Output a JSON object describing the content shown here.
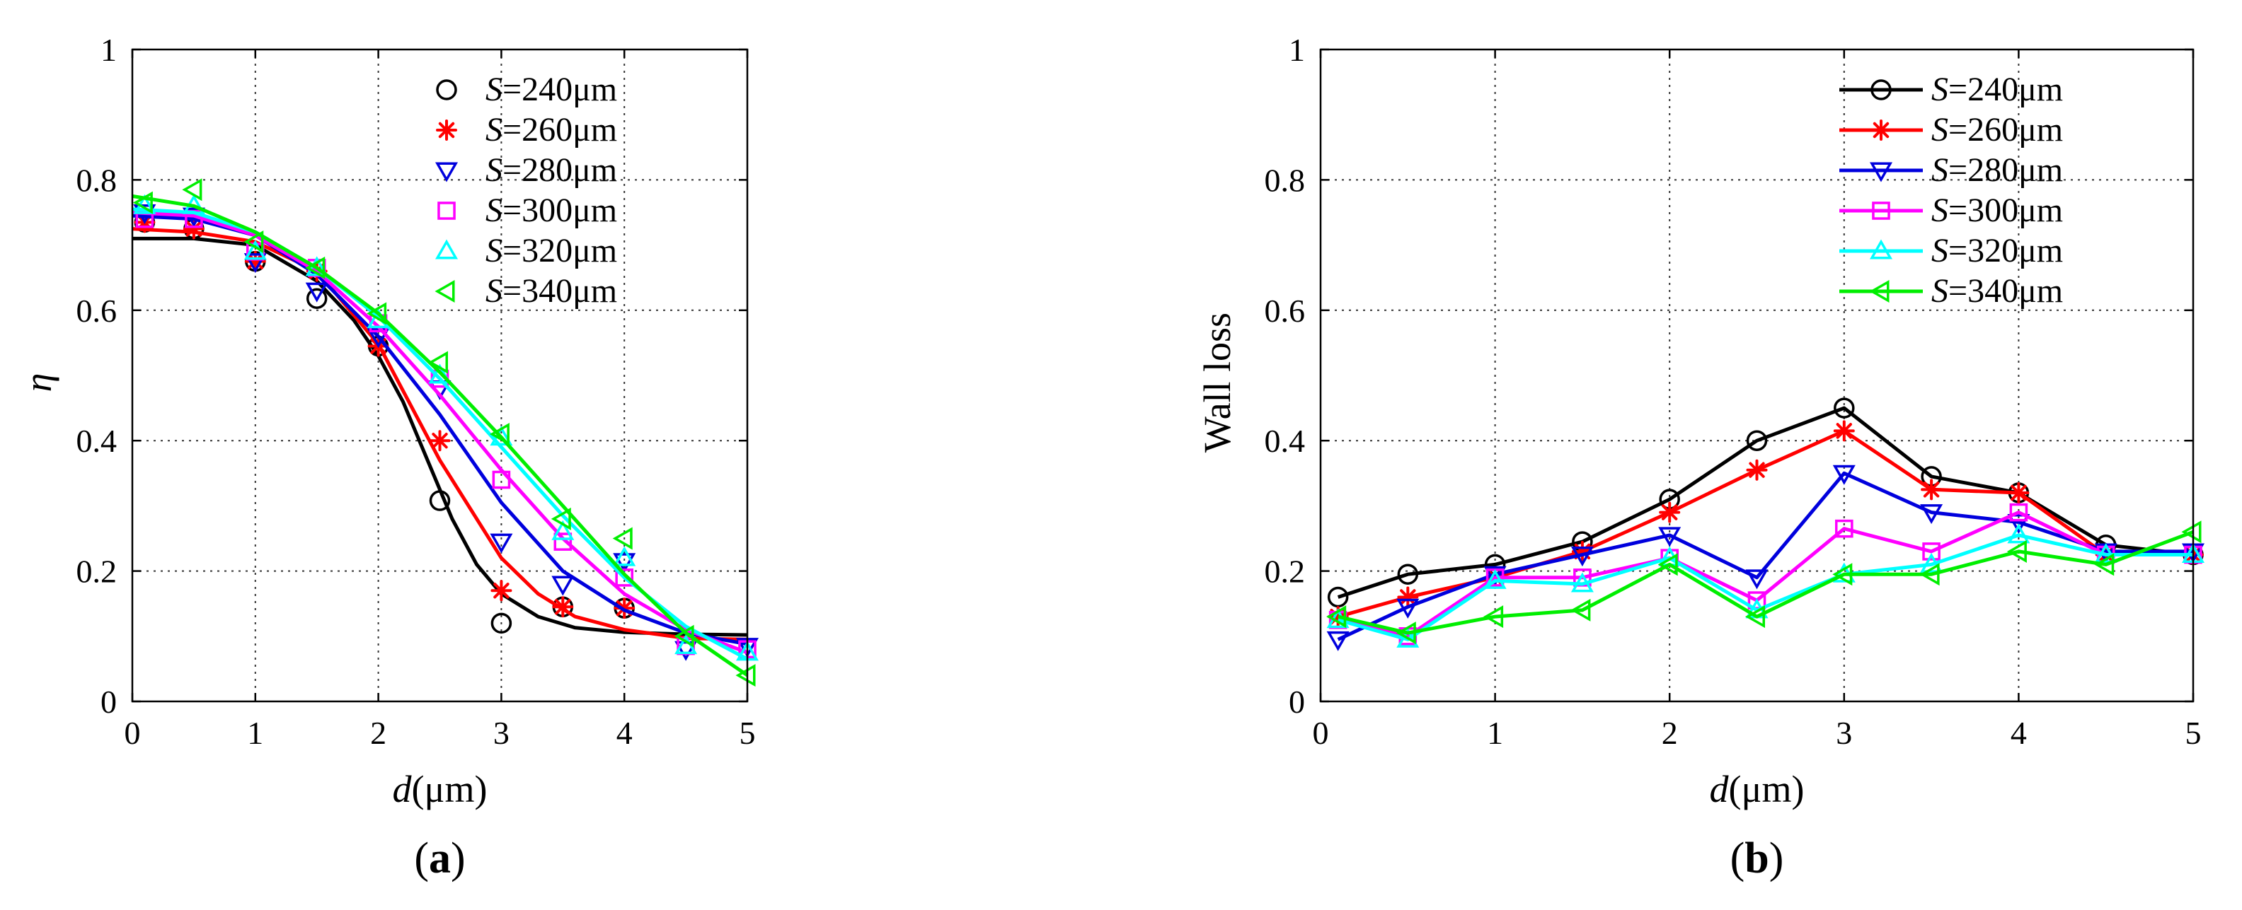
{
  "colors": {
    "S240": "#000000",
    "S260": "#ff0000",
    "S280": "#0000dd",
    "S300": "#ff00ff",
    "S320": "#00ffff",
    "S340": "#00ee00"
  },
  "chart_data": [
    {
      "id": "a",
      "type": "scatter",
      "panel_label": {
        "open": "(",
        "letter": "a",
        "close": ")"
      },
      "xlabel": {
        "var": "d",
        "unit": "(μm)"
      },
      "ylabel": "η",
      "xlim": [
        0,
        5
      ],
      "ylim": [
        0,
        1
      ],
      "xticks": [
        "0",
        "1",
        "2",
        "3",
        "4",
        "5"
      ],
      "yticks": [
        "0",
        "0.2",
        "0.4",
        "0.6",
        "0.8",
        "1"
      ],
      "legend_position": "top-right",
      "grid": true,
      "series": [
        {
          "key": "S240",
          "label_var": "S",
          "label_rest": "=240μm",
          "marker": "circle",
          "x": [
            0.1,
            0.5,
            1,
            1.5,
            2,
            2.5,
            3,
            3.5,
            4
          ],
          "y": [
            0.735,
            0.725,
            0.675,
            0.618,
            0.545,
            0.308,
            0.12,
            0.145,
            0.143
          ],
          "fit": [
            [
              0,
              0.71
            ],
            [
              0.5,
              0.71
            ],
            [
              1,
              0.7
            ],
            [
              1.5,
              0.645
            ],
            [
              1.8,
              0.585
            ],
            [
              2,
              0.53
            ],
            [
              2.2,
              0.46
            ],
            [
              2.4,
              0.37
            ],
            [
              2.6,
              0.28
            ],
            [
              2.8,
              0.21
            ],
            [
              3,
              0.165
            ],
            [
              3.3,
              0.13
            ],
            [
              3.6,
              0.113
            ],
            [
              4,
              0.106
            ],
            [
              4.5,
              0.103
            ],
            [
              5,
              0.102
            ]
          ]
        },
        {
          "key": "S260",
          "label_var": "S",
          "label_rest": "=260μm",
          "marker": "asterisk",
          "x": [
            0.1,
            0.5,
            1,
            1.5,
            2,
            2.5,
            3,
            3.5,
            4
          ],
          "y": [
            0.735,
            0.725,
            0.675,
            0.66,
            0.545,
            0.4,
            0.17,
            0.145,
            0.143
          ],
          "fit": [
            [
              0,
              0.725
            ],
            [
              0.5,
              0.72
            ],
            [
              1,
              0.705
            ],
            [
              1.5,
              0.66
            ],
            [
              2,
              0.548
            ],
            [
              2.5,
              0.37
            ],
            [
              3,
              0.22
            ],
            [
              3.3,
              0.165
            ],
            [
              3.6,
              0.13
            ],
            [
              4,
              0.11
            ],
            [
              4.5,
              0.097
            ],
            [
              5,
              0.095
            ]
          ]
        },
        {
          "key": "S280",
          "label_var": "S",
          "label_rest": "=280μm",
          "marker": "triangle-down",
          "x": [
            0.1,
            0.5,
            1,
            1.5,
            2,
            2.5,
            3,
            3.5,
            4,
            4.5,
            5
          ],
          "y": [
            0.75,
            0.745,
            0.675,
            0.63,
            0.56,
            0.48,
            0.245,
            0.18,
            0.215,
            0.08,
            0.085
          ],
          "fit": [
            [
              0,
              0.745
            ],
            [
              0.5,
              0.74
            ],
            [
              1,
              0.715
            ],
            [
              1.5,
              0.655
            ],
            [
              2,
              0.56
            ],
            [
              2.5,
              0.44
            ],
            [
              3,
              0.305
            ],
            [
              3.5,
              0.2
            ],
            [
              4,
              0.14
            ],
            [
              4.5,
              0.105
            ],
            [
              5,
              0.088
            ]
          ]
        },
        {
          "key": "S300",
          "label_var": "S",
          "label_rest": "=300μm",
          "marker": "square",
          "x": [
            0.1,
            0.5,
            1,
            1.5,
            2,
            2.5,
            3,
            3.5,
            4,
            4.5,
            5
          ],
          "y": [
            0.74,
            0.74,
            0.69,
            0.665,
            0.58,
            0.495,
            0.34,
            0.245,
            0.19,
            0.085,
            0.08
          ],
          "fit": [
            [
              0,
              0.75
            ],
            [
              0.5,
              0.745
            ],
            [
              1,
              0.715
            ],
            [
              1.5,
              0.66
            ],
            [
              2,
              0.575
            ],
            [
              2.5,
              0.47
            ],
            [
              3,
              0.355
            ],
            [
              3.5,
              0.25
            ],
            [
              4,
              0.165
            ],
            [
              4.5,
              0.11
            ],
            [
              5,
              0.075
            ]
          ]
        },
        {
          "key": "S320",
          "label_var": "S",
          "label_rest": "=320μm",
          "marker": "triangle-up",
          "x": [
            0.1,
            0.5,
            1,
            1.5,
            2,
            2.5,
            3,
            3.5,
            4,
            4.5,
            5
          ],
          "y": [
            0.76,
            0.76,
            0.69,
            0.665,
            0.585,
            0.5,
            0.405,
            0.26,
            0.22,
            0.085,
            0.075
          ],
          "fit": [
            [
              0,
              0.755
            ],
            [
              0.5,
              0.75
            ],
            [
              1,
              0.72
            ],
            [
              1.5,
              0.665
            ],
            [
              2,
              0.59
            ],
            [
              2.5,
              0.495
            ],
            [
              3,
              0.39
            ],
            [
              3.5,
              0.285
            ],
            [
              4,
              0.19
            ],
            [
              4.5,
              0.115
            ],
            [
              5,
              0.065
            ]
          ]
        },
        {
          "key": "S340",
          "label_var": "S",
          "label_rest": "=340μm",
          "marker": "triangle-left",
          "x": [
            0.1,
            0.5,
            1,
            1.5,
            2,
            2.5,
            3,
            3.5,
            4,
            4.5,
            5
          ],
          "y": [
            0.765,
            0.785,
            0.705,
            0.665,
            0.595,
            0.52,
            0.41,
            0.28,
            0.25,
            0.1,
            0.04
          ],
          "fit": [
            [
              0,
              0.775
            ],
            [
              0.5,
              0.76
            ],
            [
              1,
              0.72
            ],
            [
              1.5,
              0.665
            ],
            [
              2,
              0.595
            ],
            [
              2.5,
              0.505
            ],
            [
              3,
              0.405
            ],
            [
              3.5,
              0.3
            ],
            [
              4,
              0.195
            ],
            [
              4.5,
              0.105
            ],
            [
              5,
              0.04
            ]
          ]
        }
      ]
    },
    {
      "id": "b",
      "type": "line",
      "panel_label": {
        "open": "(",
        "letter": "b",
        "close": ")"
      },
      "xlabel": {
        "var": "d",
        "unit": "(μm)"
      },
      "ylabel": "Wall loss",
      "xlim": [
        0,
        5
      ],
      "ylim": [
        0,
        1
      ],
      "xticks": [
        "0",
        "1",
        "2",
        "3",
        "4",
        "5"
      ],
      "yticks": [
        "0",
        "0.2",
        "0.4",
        "0.6",
        "0.8",
        "1"
      ],
      "legend_position": "top-right",
      "grid": true,
      "x": [
        0.1,
        0.5,
        1,
        1.5,
        2,
        2.5,
        3,
        3.5,
        4,
        4.5,
        5
      ],
      "series": [
        {
          "key": "S240",
          "label_var": "S",
          "label_rest": "=240μm",
          "marker": "circle",
          "y": [
            0.16,
            0.195,
            0.21,
            0.245,
            0.31,
            0.4,
            0.45,
            0.345,
            0.32,
            0.24,
            0.225
          ]
        },
        {
          "key": "S260",
          "label_var": "S",
          "label_rest": "=260μm",
          "marker": "asterisk",
          "y": [
            0.13,
            0.16,
            0.19,
            0.23,
            0.29,
            0.355,
            0.415,
            0.325,
            0.32,
            0.225,
            0.225
          ]
        },
        {
          "key": "S280",
          "label_var": "S",
          "label_rest": "=280μm",
          "marker": "triangle-down",
          "y": [
            0.095,
            0.145,
            0.195,
            0.225,
            0.255,
            0.19,
            0.35,
            0.29,
            0.275,
            0.23,
            0.23
          ]
        },
        {
          "key": "S300",
          "label_var": "S",
          "label_rest": "=300μm",
          "marker": "square",
          "y": [
            0.125,
            0.1,
            0.19,
            0.19,
            0.22,
            0.155,
            0.265,
            0.23,
            0.29,
            0.225,
            0.225
          ]
        },
        {
          "key": "S320",
          "label_var": "S",
          "label_rest": "=320μm",
          "marker": "triangle-up",
          "y": [
            0.125,
            0.095,
            0.185,
            0.18,
            0.22,
            0.14,
            0.195,
            0.21,
            0.255,
            0.225,
            0.225
          ]
        },
        {
          "key": "S340",
          "label_var": "S",
          "label_rest": "=340μm",
          "marker": "triangle-left",
          "y": [
            0.13,
            0.105,
            0.13,
            0.14,
            0.21,
            0.13,
            0.195,
            0.195,
            0.23,
            0.21,
            0.26
          ]
        }
      ]
    }
  ]
}
